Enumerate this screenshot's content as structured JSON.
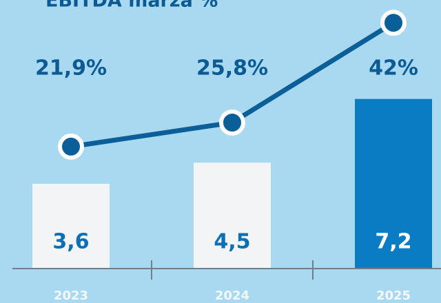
{
  "chart_data": {
    "type": "bar",
    "title": "EBITDA marža %",
    "categories": [
      "2023",
      "2024",
      "2025"
    ],
    "series": [
      {
        "name": "EBITDA",
        "type": "bar",
        "colors": [
          "#f2f4f6",
          "#f2f4f6",
          "#0a7cc4"
        ],
        "values": [
          3.6,
          4.5,
          7.2
        ],
        "value_labels": [
          "3,6",
          "4,5",
          "7,2"
        ]
      },
      {
        "name": "EBITDA marža %",
        "type": "line",
        "axis": "y2",
        "color": "#0b5f98",
        "values": [
          21.9,
          25.8,
          42
        ],
        "value_labels": [
          "21,9%",
          "25,8%",
          "42%"
        ]
      }
    ],
    "ylim": [
      0,
      11.4
    ],
    "y2lim": [
      2.1,
      45.7
    ]
  }
}
